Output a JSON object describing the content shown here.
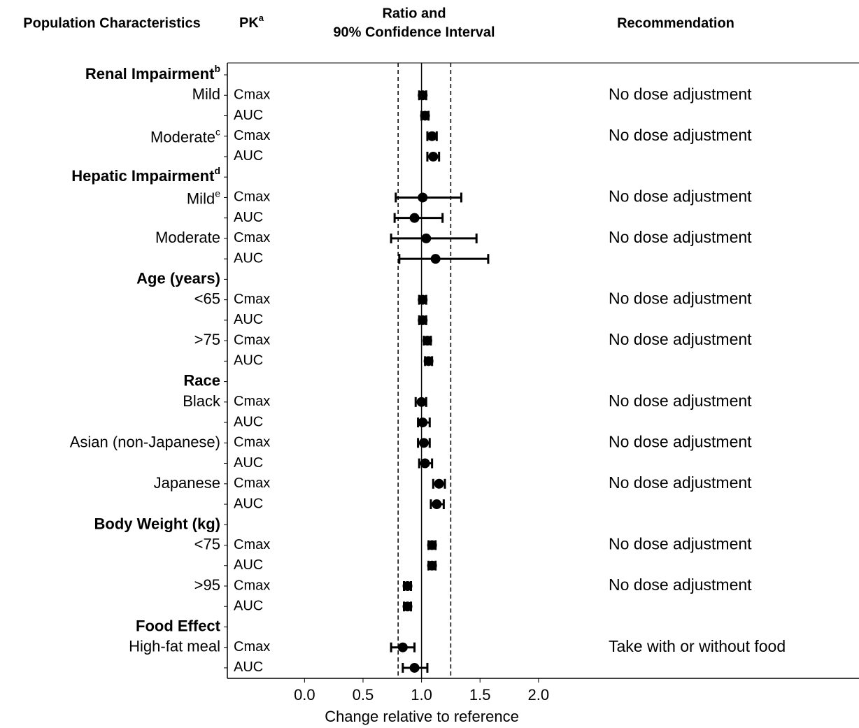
{
  "chart_data": {
    "type": "forest",
    "headers": {
      "population": "Population Characteristics",
      "pk": "PK",
      "pk_sup": "a",
      "ratio": [
        "Ratio and",
        "90% Confidence Interval"
      ],
      "recommendation": "Recommendation"
    },
    "xlabel": "Change relative to reference",
    "xlim": [
      -0.66,
      4.74
    ],
    "xticks": [
      {
        "value": 0,
        "label": "0.0"
      },
      {
        "value": 0.5,
        "label": "0.5"
      },
      {
        "value": 1,
        "label": "1.0"
      },
      {
        "value": 1.5,
        "label": "1.5"
      },
      {
        "value": 2,
        "label": "2.0"
      }
    ],
    "ref_lines": [
      {
        "value": 1,
        "style": "solid"
      },
      {
        "value": 0.8,
        "style": "dashed"
      },
      {
        "value": 1.25,
        "style": "dashed"
      }
    ],
    "color": "#000000",
    "groups": [
      {
        "name": "Renal Impairment",
        "sup": "b",
        "subgroups": [
          {
            "label": "Mild",
            "recommendation": "No dose adjustment",
            "pk": [
              {
                "name": "Cmax",
                "value": 1.01,
                "ci": [
                  0.98,
                  1.04
                ]
              },
              {
                "name": "AUC",
                "value": 1.03,
                "ci": [
                  1.0,
                  1.06
                ]
              }
            ]
          },
          {
            "label": "Moderate",
            "sup": "c",
            "recommendation": "No dose adjustment",
            "pk": [
              {
                "name": "Cmax",
                "value": 1.09,
                "ci": [
                  1.05,
                  1.13
                ]
              },
              {
                "name": "AUC",
                "value": 1.1,
                "ci": [
                  1.05,
                  1.15
                ]
              }
            ]
          }
        ]
      },
      {
        "name": "Hepatic Impairment",
        "sup": "d",
        "subgroups": [
          {
            "label": "Mild",
            "sup": "e",
            "recommendation": "No dose adjustment",
            "pk": [
              {
                "name": "Cmax",
                "value": 1.01,
                "ci": [
                  0.78,
                  1.34
                ]
              },
              {
                "name": "AUC",
                "value": 0.94,
                "ci": [
                  0.77,
                  1.18
                ]
              }
            ]
          },
          {
            "label": "Moderate",
            "recommendation": "No dose adjustment",
            "pk": [
              {
                "name": "Cmax",
                "value": 1.04,
                "ci": [
                  0.74,
                  1.47
                ]
              },
              {
                "name": "AUC",
                "value": 1.12,
                "ci": [
                  0.81,
                  1.57
                ]
              }
            ]
          }
        ]
      },
      {
        "name": "Age (years)",
        "subgroups": [
          {
            "label": "<65",
            "recommendation": "No dose adjustment",
            "pk": [
              {
                "name": "Cmax",
                "value": 1.01,
                "ci": [
                  0.98,
                  1.04
                ]
              },
              {
                "name": "AUC",
                "value": 1.01,
                "ci": [
                  0.98,
                  1.04
                ]
              }
            ]
          },
          {
            "label": ">75",
            "recommendation": "No dose adjustment",
            "pk": [
              {
                "name": "Cmax",
                "value": 1.05,
                "ci": [
                  1.02,
                  1.08
                ]
              },
              {
                "name": "AUC",
                "value": 1.06,
                "ci": [
                  1.03,
                  1.09
                ]
              }
            ]
          }
        ]
      },
      {
        "name": "Race",
        "subgroups": [
          {
            "label": "Black",
            "recommendation": "No dose adjustment",
            "pk": [
              {
                "name": "Cmax",
                "value": 1.0,
                "ci": [
                  0.95,
                  1.04
                ]
              },
              {
                "name": "AUC",
                "value": 1.01,
                "ci": [
                  0.97,
                  1.07
                ]
              }
            ]
          },
          {
            "label": "Asian (non-Japanese)",
            "recommendation": "No dose adjustment",
            "pk": [
              {
                "name": "Cmax",
                "value": 1.02,
                "ci": [
                  0.97,
                  1.07
                ]
              },
              {
                "name": "AUC",
                "value": 1.03,
                "ci": [
                  0.98,
                  1.09
                ]
              }
            ]
          },
          {
            "label": "Japanese",
            "recommendation": "No dose adjustment",
            "pk": [
              {
                "name": "Cmax",
                "value": 1.15,
                "ci": [
                  1.1,
                  1.2
                ]
              },
              {
                "name": "AUC",
                "value": 1.13,
                "ci": [
                  1.08,
                  1.19
                ]
              }
            ]
          }
        ]
      },
      {
        "name": "Body Weight (kg)",
        "subgroups": [
          {
            "label": "<75",
            "recommendation": "No dose adjustment",
            "pk": [
              {
                "name": "Cmax",
                "value": 1.09,
                "ci": [
                  1.06,
                  1.12
                ]
              },
              {
                "name": "AUC",
                "value": 1.09,
                "ci": [
                  1.06,
                  1.12
                ]
              }
            ]
          },
          {
            "label": ">95",
            "recommendation": "No dose adjustment",
            "pk": [
              {
                "name": "Cmax",
                "value": 0.88,
                "ci": [
                  0.85,
                  0.91
                ]
              },
              {
                "name": "AUC",
                "value": 0.88,
                "ci": [
                  0.85,
                  0.91
                ]
              }
            ]
          }
        ]
      },
      {
        "name": "Food Effect",
        "subgroups": [
          {
            "label": "High-fat meal",
            "recommendation": "Take with or without food",
            "pk": [
              {
                "name": "Cmax",
                "value": 0.84,
                "ci": [
                  0.74,
                  0.94
                ]
              },
              {
                "name": "AUC",
                "value": 0.94,
                "ci": [
                  0.84,
                  1.05
                ]
              }
            ]
          }
        ]
      }
    ]
  }
}
